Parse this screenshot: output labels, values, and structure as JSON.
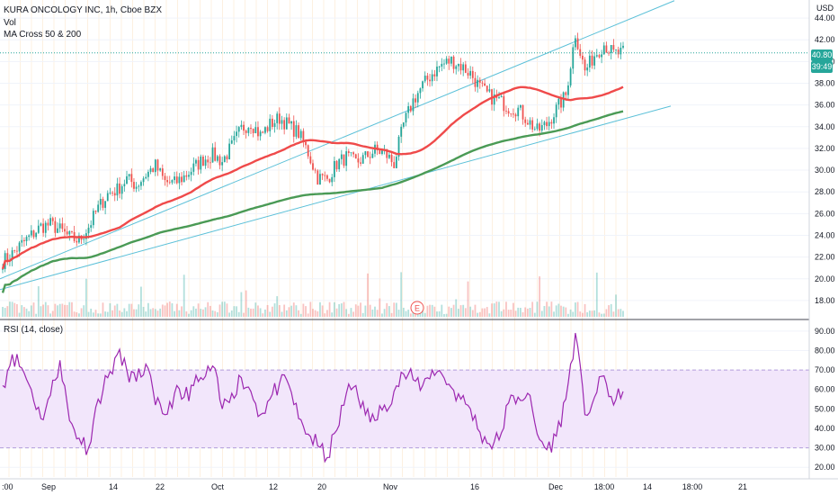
{
  "header": {
    "symbol_line": "KURA ONCOLOGY INC, 1h, Cboe BZX",
    "vol_label": "Vol",
    "ma_label": "MA Cross 50 & 200",
    "currency": "USD"
  },
  "price_badges": {
    "last": "40.80",
    "countdown": "39:49"
  },
  "earnings_marker": "E",
  "rsi_label": "RSI (14, close)",
  "colors": {
    "ma50": "#ef4a4a",
    "ma200": "#4a9a55",
    "channel": "#5bc0d8",
    "rsi": "#9c27b0",
    "rsi_band": "#f2e6fb",
    "last_badge": "#26a69a",
    "countdown_badge": "#26a69a",
    "up_candle": "#26a69a",
    "down_candle": "#ef5350"
  },
  "chart_data": [
    {
      "type": "line",
      "title": "KURA ONCOLOGY INC, 1h, Cboe BZX",
      "y_axis": {
        "ylim": [
          16.5,
          45.0
        ],
        "ticks": [
          "18.00",
          "20.00",
          "22.00",
          "24.00",
          "26.00",
          "28.00",
          "30.00",
          "32.00",
          "34.00",
          "36.00",
          "38.00",
          "40.00",
          "42.00",
          "44.00"
        ]
      },
      "x_axis": {
        "ticks": [
          ":00",
          "Sep",
          "14",
          "22",
          "Oct",
          "12",
          "20",
          "Nov",
          "16",
          "Dec",
          "18:00",
          "14",
          "18:00",
          "21"
        ]
      },
      "last_price": 40.8,
      "series": [
        {
          "name": "price",
          "values": [
            21.6,
            22.3,
            23.2,
            24.0,
            24.8,
            25.0,
            24.5,
            23.8,
            23.5,
            24.8,
            26.5,
            27.8,
            28.2,
            29.2,
            28.6,
            29.6,
            30.4,
            28.9,
            28.8,
            29.4,
            30.2,
            31.0,
            31.4,
            30.8,
            32.2,
            33.8,
            34.4,
            33.2,
            34.2,
            34.8,
            34.1,
            33.4,
            31.6,
            29.3,
            29.2,
            30.6,
            31.2,
            30.7,
            31.2,
            31.8,
            31.6,
            30.6,
            34.2,
            36.4,
            37.8,
            38.9,
            39.7,
            40.1,
            39.6,
            38.9,
            37.6,
            36.8,
            36.4,
            35.8,
            35.6,
            34.6,
            33.6,
            34.2,
            35.6,
            36.9,
            42.6,
            39.1,
            40.6,
            41.6,
            40.7,
            40.8
          ]
        },
        {
          "name": "MA 50",
          "values": []
        },
        {
          "name": "MA 200",
          "values": []
        }
      ]
    },
    {
      "type": "line",
      "title": "RSI (14, close)",
      "y_axis": {
        "ylim": [
          15,
          95
        ],
        "ticks": [
          "20.00",
          "30.00",
          "40.00",
          "50.00",
          "60.00",
          "70.00",
          "80.00",
          "90.00"
        ]
      },
      "band": [
        30,
        70
      ],
      "series": [
        {
          "name": "RSI",
          "values": [
            62,
            78,
            71,
            60,
            45,
            57,
            75,
            44,
            35,
            30,
            55,
            66,
            78,
            70,
            64,
            73,
            52,
            47,
            58,
            56,
            62,
            65,
            72,
            50,
            58,
            66,
            59,
            47,
            55,
            63,
            62,
            45,
            37,
            31,
            25,
            39,
            58,
            62,
            47,
            44,
            52,
            59,
            68,
            65,
            62,
            70,
            68,
            61,
            55,
            50,
            38,
            32,
            34,
            53,
            56,
            58,
            37,
            29,
            36,
            55,
            89,
            47,
            56,
            67,
            52,
            59
          ]
        }
      ]
    }
  ]
}
